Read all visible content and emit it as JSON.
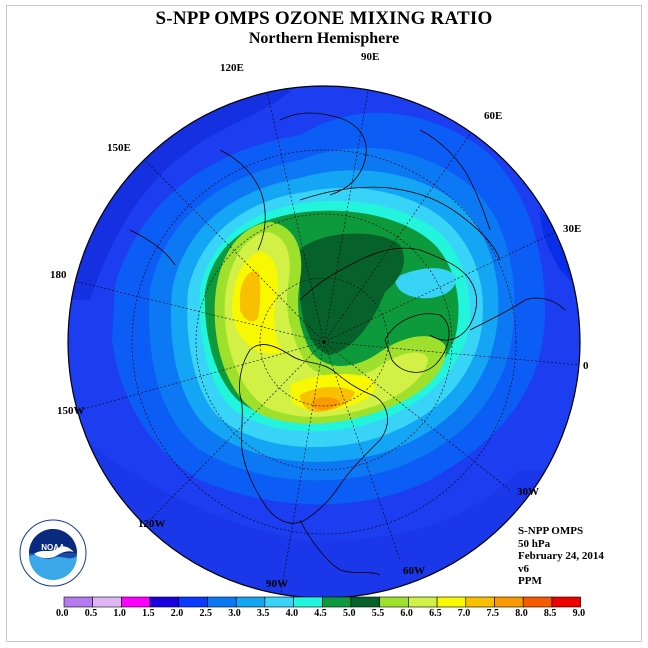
{
  "title": "S-NPP OMPS OZONE MIXING RATIO",
  "subtitle": "Northern Hemisphere",
  "longitude_labels": [
    "120E",
    "90E",
    "60E",
    "30E",
    "150E",
    "180",
    "0",
    "150W",
    "30W",
    "120W",
    "60W",
    "90W"
  ],
  "info": {
    "instrument": "S-NPP OMPS",
    "level": "50 hPa",
    "date": "February 24, 2014",
    "version": "v6",
    "units": "PPM"
  },
  "logo_text": "NOAA",
  "colorbar": {
    "ticks": [
      "0.0",
      "0.5",
      "1.0",
      "1.5",
      "2.0",
      "2.5",
      "3.0",
      "3.5",
      "4.0",
      "4.5",
      "5.0",
      "5.5",
      "6.0",
      "6.5",
      "7.0",
      "7.5",
      "8.0",
      "8.5",
      "9.0"
    ],
    "colors": [
      "#b47bf0",
      "#dfb6f5",
      "#ff00ff",
      "#1a00e0",
      "#0a3aff",
      "#0c78f4",
      "#14a6f4",
      "#38d4f8",
      "#22f5dc",
      "#0d9a3c",
      "#06622a",
      "#9ee02c",
      "#d2f046",
      "#f8f800",
      "#f8c000",
      "#f89a00",
      "#f85a00",
      "#ee0000",
      "#8a5a3a"
    ]
  },
  "colors": {
    "ocean_dark": "#1c3ef0",
    "coastline": "#000000"
  }
}
